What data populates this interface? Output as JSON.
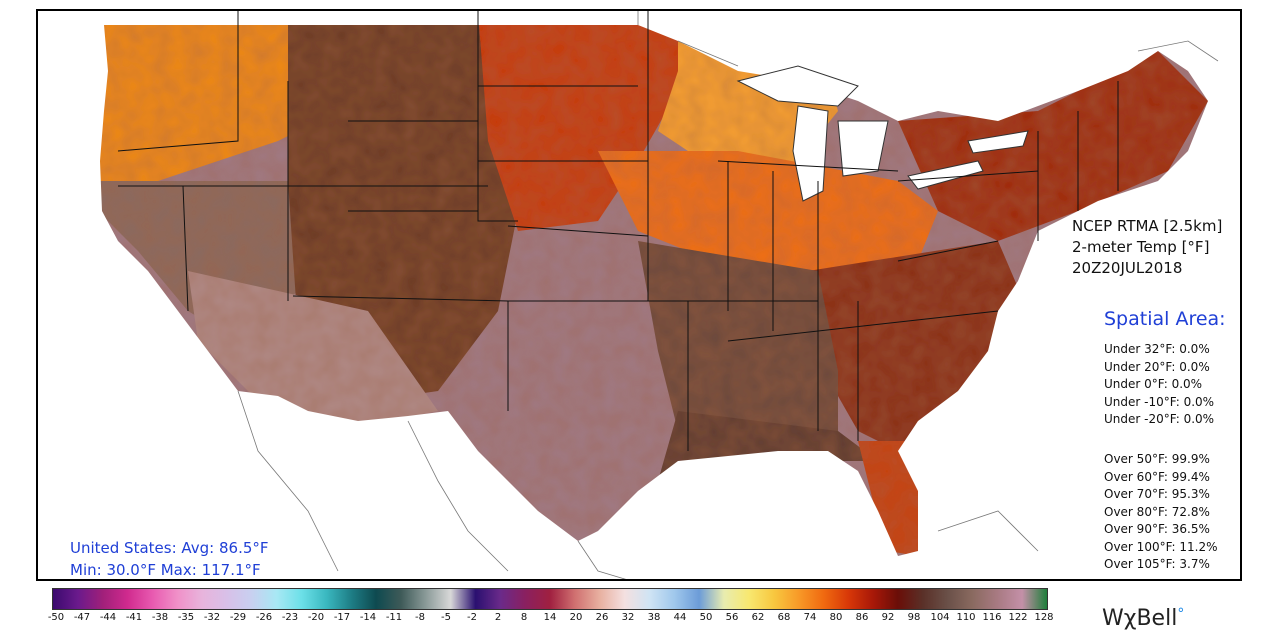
{
  "map": {
    "product": "NCEP RTMA [2.5km]",
    "variable": "2-meter Temp [°F]",
    "valid_time": "20Z20JUL2018"
  },
  "spatial": {
    "title": "Spatial Area:",
    "under": [
      "Under 32°F: 0.0%",
      "Under 20°F: 0.0%",
      "Under 0°F: 0.0%",
      "Under -10°F: 0.0%",
      "Under -20°F: 0.0%"
    ],
    "over": [
      "Over 50°F: 99.9%",
      "Over 60°F: 99.4%",
      "Over 70°F: 95.3%",
      "Over 80°F: 72.8%",
      "Over 90°F: 36.5%",
      "Over 100°F: 11.2%",
      "Over 105°F: 3.7%"
    ]
  },
  "summary": {
    "avg_line": "United States: Avg:  86.5°F",
    "minmax_line": "Min:  30.0°F Max: 117.1°F"
  },
  "colorbar": {
    "ticks": [
      "-50",
      "-47",
      "-44",
      "-41",
      "-38",
      "-35",
      "-32",
      "-29",
      "-26",
      "-23",
      "-20",
      "-17",
      "-14",
      "-11",
      "-8",
      "-5",
      "-2",
      "2",
      "8",
      "14",
      "20",
      "26",
      "32",
      "38",
      "44",
      "50",
      "56",
      "62",
      "68",
      "74",
      "80",
      "86",
      "92",
      "98",
      "104",
      "110",
      "116",
      "122",
      "128"
    ],
    "stops": [
      "#3b0a6e",
      "#6a1a8c",
      "#a0207a",
      "#d02a8e",
      "#e85ab0",
      "#f090c8",
      "#e8b4dc",
      "#d8c0e8",
      "#c8d0f0",
      "#a8e8f4",
      "#6ce0e8",
      "#3ab8c0",
      "#1e7e86",
      "#0e4a50",
      "#3e5a58",
      "#8a9a98",
      "#d8d8d8",
      "#2a1070",
      "#6a2a8a",
      "#8a2060",
      "#a02040",
      "#d07070",
      "#e8b0a0",
      "#f4e0e0",
      "#d0e4f4",
      "#a0c8ec",
      "#6c9cd8",
      "#e8ecb0",
      "#f8e870",
      "#f8c840",
      "#f89a28",
      "#f06a10",
      "#d83808",
      "#a81808",
      "#6a0e08",
      "#5a3028",
      "#6a5048",
      "#8a6a60",
      "#a87a82",
      "#c490a8",
      "#1e7e3a"
    ]
  },
  "regions": {
    "pacific_nw": "#f08a18",
    "great_basin": "#8a6a60",
    "rockies": "#6a3a28",
    "southwest": "#b08a86",
    "plains_north": "#c83a10",
    "plains_south": "#a07a84",
    "midwest": "#f07018",
    "upper_midwest": "#f8a030",
    "south": "#6a4a3e",
    "southeast": "#8a2a18",
    "northeast": "#a02810",
    "gulf_coast": "#5a3a30",
    "florida": "#c84010"
  },
  "brand": {
    "logo_text": "WχBell",
    "logo_mark": "°"
  }
}
